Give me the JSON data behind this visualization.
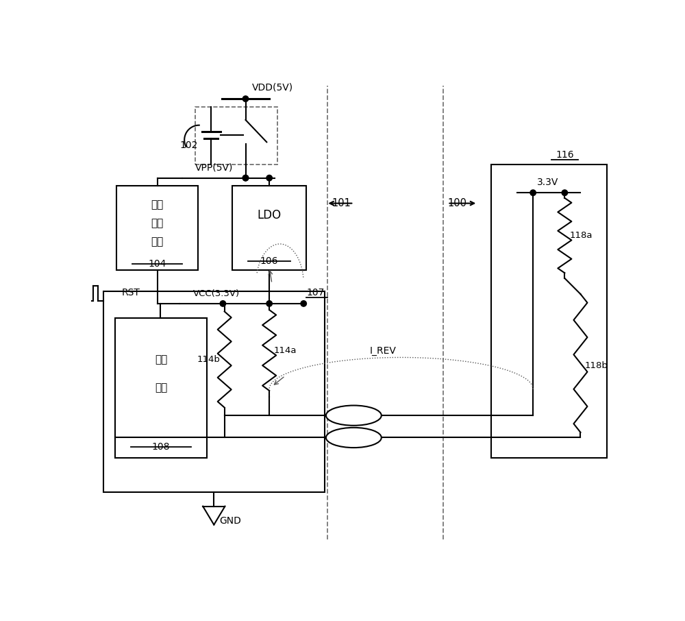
{
  "bg_color": "#ffffff",
  "line_color": "#000000",
  "fig_width": 10.0,
  "fig_height": 9.06,
  "dpi": 100,
  "xlim": [
    0,
    10
  ],
  "ylim": [
    0,
    9.06
  ]
}
